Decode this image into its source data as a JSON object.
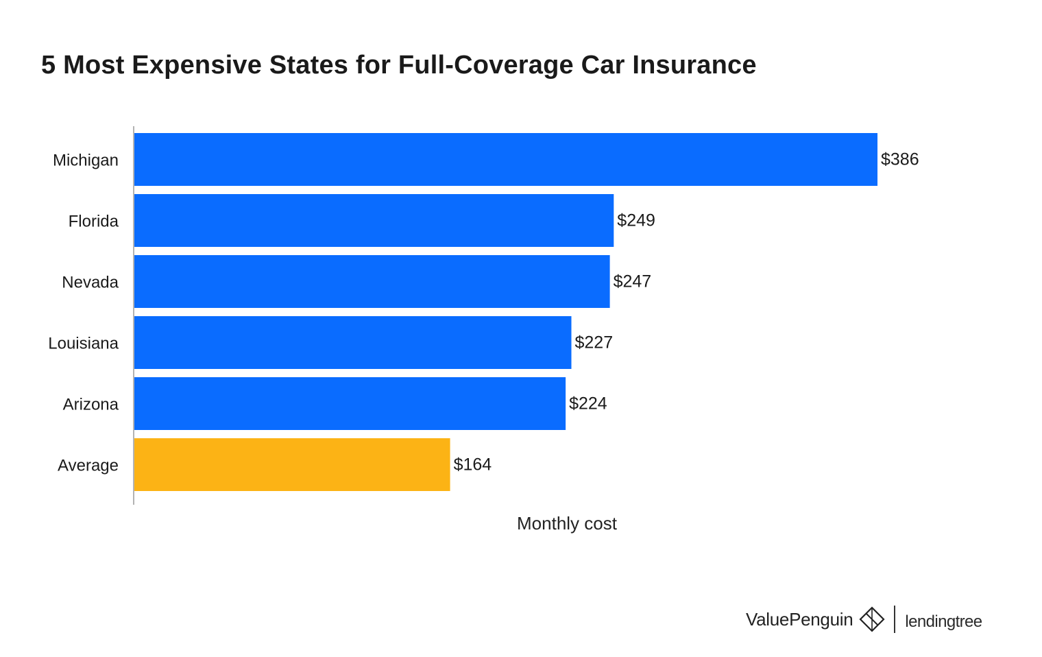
{
  "chart_data": {
    "type": "bar",
    "orientation": "horizontal",
    "title": "5 Most Expensive States for Full-Coverage Car Insurance",
    "categories": [
      "Michigan",
      "Florida",
      "Nevada",
      "Louisiana",
      "Arizona",
      "Average"
    ],
    "values": [
      386,
      249,
      247,
      227,
      224,
      164
    ],
    "value_labels": [
      "$386",
      "$249",
      "$247",
      "$227",
      "$224",
      "$164"
    ],
    "bar_colors": [
      "#0a6cff",
      "#0a6cff",
      "#0a6cff",
      "#0a6cff",
      "#0a6cff",
      "#fcb315"
    ],
    "xlabel": "Monthly cost",
    "ylabel": "",
    "xlim": [
      0,
      386
    ],
    "grid": false,
    "legend": "none"
  },
  "branding": {
    "primary": "ValuePenguin",
    "secondary": "lendingtree",
    "icon": "valuepenguin-diamond-icon"
  },
  "colors": {
    "bar_primary": "#0a6cff",
    "bar_average": "#fcb315",
    "text": "#1a1a1a"
  }
}
